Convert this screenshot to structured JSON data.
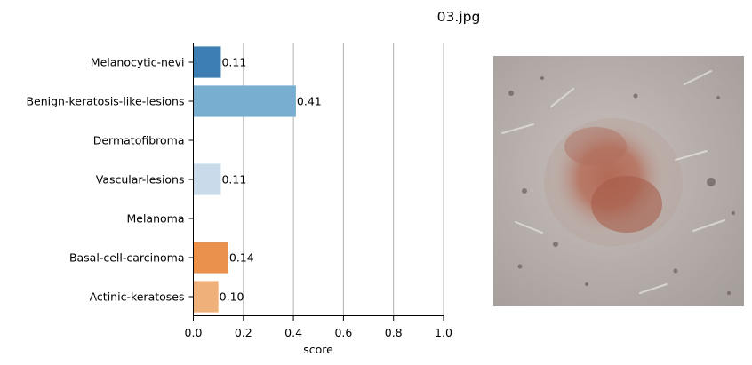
{
  "title": "03.jpg",
  "chart_data": {
    "type": "bar",
    "orientation": "horizontal",
    "categories": [
      "Melanocytic-nevi",
      "Benign-keratosis-like-lesions",
      "Dermatofibroma",
      "Vascular-lesions",
      "Melanoma",
      "Basal-cell-carcinoma",
      "Actinic-keratoses"
    ],
    "values": [
      0.11,
      0.41,
      0.0,
      0.11,
      0.0,
      0.14,
      0.1
    ],
    "data_labels": [
      "0.11",
      "0.41",
      "",
      "0.11",
      "",
      "0.14",
      "0.10"
    ],
    "colors": [
      "#3d7fb5",
      "#78aed0",
      "#a8cce4",
      "#c9dbeb",
      "#fbd1a6",
      "#ea914d",
      "#efb07a"
    ],
    "xlabel": "score",
    "xlim": [
      0,
      1.0
    ],
    "xticks": [
      0.0,
      0.2,
      0.4,
      0.6,
      0.8,
      1.0
    ],
    "xtick_labels": [
      "0.0",
      "0.2",
      "0.4",
      "0.6",
      "0.8",
      "1.0"
    ],
    "grid": "vertical"
  },
  "image_panel": {
    "description_icon": "skin-lesion-photo"
  }
}
